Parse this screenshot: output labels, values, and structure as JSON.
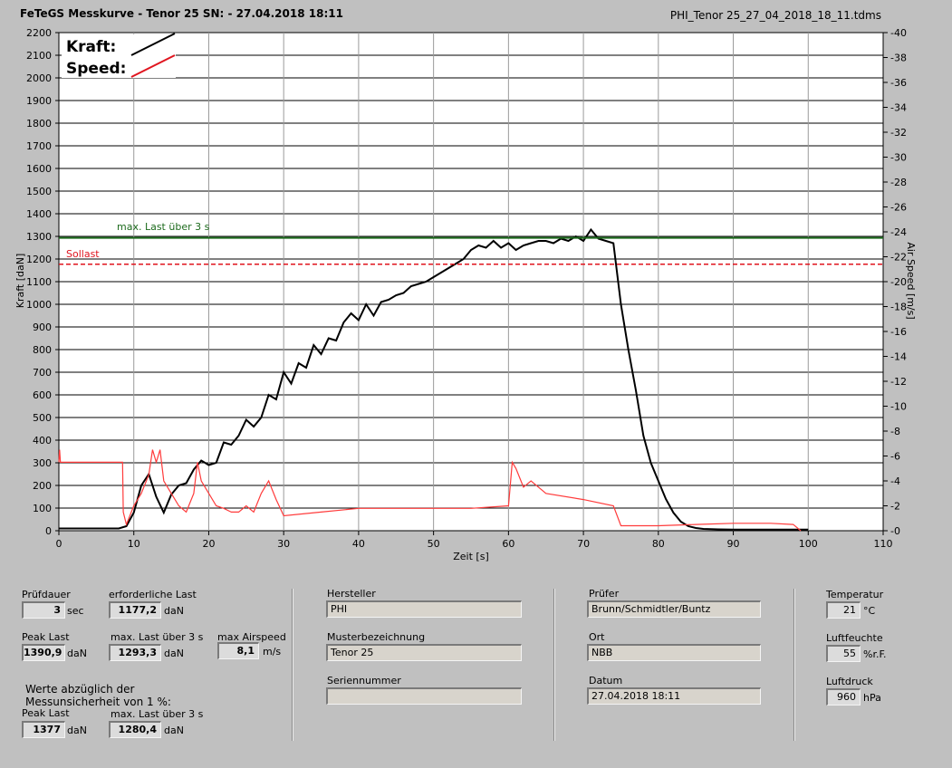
{
  "header": {
    "title": "FeTeGS Messkurve - Tenor 25  SN:  - 27.04.2018 18:11",
    "filename": "PHI_Tenor 25_27_04_2018_18_11.tdms"
  },
  "legend": {
    "kraft": "Kraft:",
    "speed": "Speed:"
  },
  "markers": {
    "max_last_label": "max. Last über  3 s",
    "max_last_value": 1293.3,
    "sollast_label": "Sollast",
    "sollast_value": 1177.2,
    "max_last_color": "#1d6b1d",
    "sollast_color": "#e0141e"
  },
  "chart_data": {
    "type": "line",
    "xlabel": "Zeit [s]",
    "ylabel": "Kraft [daN]",
    "y2label": "Air Speed [m/s]",
    "xlim": [
      0,
      110
    ],
    "ylim": [
      0,
      2200
    ],
    "y2lim": [
      0,
      40
    ],
    "x_ticks": [
      "0",
      "10",
      "20",
      "30",
      "40",
      "50",
      "60",
      "70",
      "80",
      "90",
      "100",
      "110"
    ],
    "y_ticks": [
      "0",
      "100",
      "200",
      "300",
      "400",
      "500",
      "600",
      "700",
      "800",
      "900",
      "1000",
      "1100",
      "1200",
      "1300",
      "1400",
      "1500",
      "1600",
      "1700",
      "1800",
      "1900",
      "2000",
      "2100",
      "2200"
    ],
    "y2_ticks": [
      "0",
      "2",
      "4",
      "6",
      "8",
      "10",
      "12",
      "14",
      "16",
      "18",
      "20",
      "22",
      "24",
      "26",
      "28",
      "30",
      "32",
      "34",
      "36",
      "38",
      "40"
    ],
    "grid": true,
    "series": [
      {
        "name": "Kraft",
        "axis": "left",
        "color": "#000000",
        "x": [
          0,
          8,
          9,
          10,
          11,
          12,
          13,
          14,
          15,
          16,
          17,
          18,
          19,
          20,
          21,
          22,
          23,
          24,
          25,
          26,
          27,
          28,
          29,
          30,
          31,
          32,
          33,
          34,
          35,
          36,
          37,
          38,
          39,
          40,
          41,
          42,
          43,
          44,
          45,
          46,
          47,
          48,
          49,
          50,
          51,
          52,
          53,
          54,
          55,
          56,
          57,
          58,
          59,
          60,
          61,
          62,
          63,
          64,
          65,
          66,
          67,
          68,
          69,
          70,
          71,
          72,
          73,
          74,
          75,
          76,
          77,
          78,
          79,
          80,
          81,
          82,
          83,
          84,
          85,
          86,
          88,
          90,
          95,
          100
        ],
        "y": [
          10,
          10,
          20,
          80,
          200,
          250,
          150,
          80,
          160,
          200,
          210,
          270,
          310,
          290,
          300,
          390,
          380,
          420,
          490,
          460,
          500,
          600,
          580,
          700,
          650,
          740,
          720,
          820,
          780,
          850,
          840,
          920,
          960,
          930,
          1000,
          950,
          1010,
          1020,
          1040,
          1050,
          1080,
          1090,
          1100,
          1120,
          1140,
          1160,
          1180,
          1200,
          1240,
          1260,
          1250,
          1280,
          1250,
          1270,
          1240,
          1260,
          1270,
          1280,
          1280,
          1270,
          1290,
          1280,
          1300,
          1280,
          1330,
          1290,
          1280,
          1270,
          1000,
          800,
          620,
          420,
          300,
          220,
          140,
          80,
          40,
          20,
          12,
          8,
          6,
          5,
          5,
          5
        ]
      },
      {
        "name": "Speed",
        "axis": "right",
        "color": "#ff3b3b",
        "x": [
          0,
          0.1,
          0.2,
          8.5,
          8.6,
          9,
          10,
          11,
          12,
          12.5,
          13,
          13.5,
          14,
          15,
          16,
          17,
          18,
          18.5,
          19,
          20,
          21,
          22,
          23,
          24,
          25,
          26,
          27,
          28,
          29,
          30,
          35,
          40,
          45,
          50,
          55,
          60,
          60.5,
          61,
          62,
          63,
          64,
          65,
          70,
          74,
          75,
          80,
          85,
          90,
          95,
          98,
          99
        ],
        "y": [
          5.5,
          6.5,
          5.5,
          5.5,
          1.5,
          0.5,
          2.0,
          3.0,
          4.5,
          6.5,
          5.5,
          6.5,
          4.0,
          3.0,
          2.0,
          1.5,
          3.0,
          5.5,
          4.0,
          3.0,
          2.0,
          1.8,
          1.5,
          1.5,
          2.0,
          1.5,
          3.0,
          4.0,
          2.5,
          1.2,
          1.5,
          1.8,
          1.8,
          1.8,
          1.8,
          2.0,
          5.5,
          5.0,
          3.5,
          4.0,
          3.5,
          3.0,
          2.5,
          2.0,
          0.4,
          0.4,
          0.5,
          0.6,
          0.6,
          0.5,
          0
        ]
      }
    ]
  },
  "panel": {
    "pruefdauer": {
      "label": "Prüfdauer",
      "value": "3",
      "unit": "sec"
    },
    "erforderliche_last": {
      "label": "erforderliche Last",
      "value": "1177,2",
      "unit": "daN"
    },
    "peak_last": {
      "label": "Peak Last",
      "value": "1390,9",
      "unit": "daN"
    },
    "max_last": {
      "label": "max. Last über  3 s",
      "value": "1293,3",
      "unit": "daN"
    },
    "max_airspeed": {
      "label": "max Airspeed",
      "value": "8,1",
      "unit": "m/s"
    },
    "werte_note_line1": "Werte abzüglich der",
    "werte_note_line2": "Messunsicherheit von 1  %:",
    "peak_last_corr": {
      "label": "Peak Last",
      "value": "1377",
      "unit": "daN"
    },
    "max_last_corr": {
      "label": "max. Last über  3 s",
      "value": "1280,4",
      "unit": "daN"
    },
    "hersteller": {
      "label": "Hersteller",
      "value": "PHI"
    },
    "musterbezeichnung": {
      "label": "Musterbezeichnung",
      "value": "Tenor 25"
    },
    "seriennummer": {
      "label": "Seriennummer",
      "value": ""
    },
    "pruefer": {
      "label": "Prüfer",
      "value": "Brunn/Schmidtler/Buntz"
    },
    "ort": {
      "label": "Ort",
      "value": "NBB"
    },
    "datum": {
      "label": "Datum",
      "value": "27.04.2018 18:11"
    },
    "temperatur": {
      "label": "Temperatur",
      "value": "21",
      "unit": "°C"
    },
    "luftfeuchte": {
      "label": "Luftfeuchte",
      "value": "55",
      "unit": "%r.F."
    },
    "luftdruck": {
      "label": "Luftdruck",
      "value": "960",
      "unit": "hPa"
    }
  }
}
